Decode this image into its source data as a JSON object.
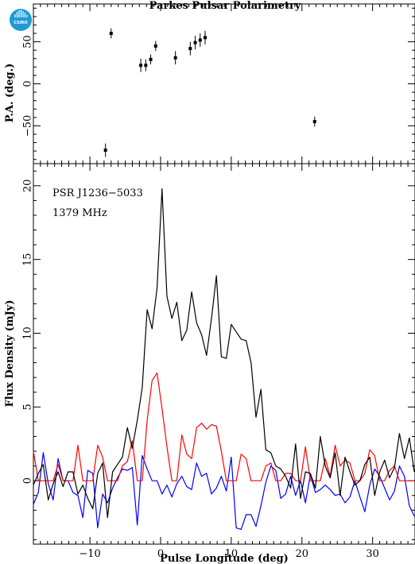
{
  "title": "Parkes Pulsar Polarimetry",
  "logo": {
    "text": "CSIRO",
    "color": "#1e9ad6"
  },
  "colors": {
    "total": "#000000",
    "linear": "#ff0000",
    "circular": "#0000ff",
    "pa": "#000000"
  },
  "chart_data": [
    {
      "type": "scatter",
      "panel": "position-angle",
      "ylabel": "P.A. (deg.)",
      "xlim": [
        -18,
        36
      ],
      "ylim": [
        -95,
        95
      ],
      "yticks": [
        -50,
        0,
        50
      ],
      "x": [
        -7.8,
        -7.0,
        -2.8,
        -2.1,
        -1.4,
        -0.7,
        2.1,
        4.2,
        4.9,
        5.6,
        6.3,
        21.8
      ],
      "y": [
        -79,
        60,
        22,
        22,
        29,
        45,
        31,
        42,
        49,
        52,
        55,
        -45
      ],
      "yerr": [
        8,
        6,
        8,
        7,
        6,
        6,
        8,
        8,
        8,
        8,
        8,
        6
      ]
    },
    {
      "type": "line",
      "panel": "profile",
      "xlabel": "Pulse Longitude (deg)",
      "ylabel": "Flux Density (mJy)",
      "xlim": [
        -18,
        36
      ],
      "ylim": [
        -4.3,
        21.5
      ],
      "xticks": [
        -10,
        0,
        10,
        20,
        30
      ],
      "yticks": [
        0,
        5,
        10,
        15,
        20
      ],
      "annotations": [
        "PSR J1236−5033",
        "1379 MHz"
      ],
      "x": [
        -18.0,
        -17.3,
        -16.6,
        -15.9,
        -15.2,
        -14.5,
        -13.8,
        -13.1,
        -12.4,
        -11.7,
        -11.0,
        -10.3,
        -9.6,
        -8.9,
        -8.2,
        -7.5,
        -6.8,
        -6.1,
        -5.4,
        -4.7,
        -4.0,
        -3.3,
        -2.6,
        -1.9,
        -1.2,
        -0.5,
        0.2,
        0.9,
        1.6,
        2.3,
        3.0,
        3.7,
        4.4,
        5.1,
        5.8,
        6.5,
        7.2,
        7.9,
        8.6,
        9.3,
        10.0,
        10.7,
        11.4,
        12.1,
        12.8,
        13.5,
        14.2,
        14.9,
        15.6,
        16.3,
        17.0,
        17.7,
        18.4,
        19.1,
        19.8,
        20.5,
        21.2,
        21.9,
        22.6,
        23.3,
        24.0,
        24.7,
        25.4,
        26.1,
        26.8,
        27.5,
        28.2,
        28.9,
        29.6,
        30.3,
        31.0,
        31.7,
        32.4,
        33.1,
        33.8,
        34.5,
        35.2,
        35.9
      ],
      "series": [
        {
          "values": [
            -0.3,
            0.5,
            1.1,
            -1.3,
            -0.2,
            0.6,
            -0.4,
            0.6,
            0.6,
            -0.9,
            -0.3,
            -1.2,
            -1.9,
            0.5,
            1.2,
            -2.5,
            0.6,
            1.1,
            1.6,
            3.6,
            2.2,
            4.1,
            6.3,
            11.6,
            10.3,
            13.1,
            19.8,
            12.5,
            11.0,
            12.1,
            9.5,
            10.2,
            12.8,
            10.7,
            9.9,
            8.5,
            11.0,
            13.9,
            8.4,
            8.3,
            10.6,
            10.1,
            9.6,
            9.5,
            8.0,
            4.3,
            6.2,
            2.1,
            1.9,
            1.0,
            0.8,
            0.3,
            -0.5,
            2.5,
            -1.2,
            0.6,
            0.5,
            -0.5,
            3.0,
            1.0,
            0.2,
            1.9,
            -1.0,
            1.6,
            0.6,
            -0.3,
            0.0,
            1.1,
            1.6,
            -1.0,
            0.6,
            1.4,
            0.2,
            0.9,
            3.2,
            1.5,
            2.9,
            0.6
          ]
        },
        {
          "values": [
            2.0,
            0.0,
            0.0,
            0.0,
            0.0,
            1.1,
            0.0,
            0.0,
            0.0,
            2.4,
            0.0,
            0.0,
            0.0,
            2.4,
            1.6,
            0.0,
            0.0,
            0.0,
            1.0,
            1.3,
            2.7,
            0.0,
            0.0,
            4.1,
            6.8,
            7.3,
            4.9,
            2.3,
            0.0,
            0.0,
            3.1,
            1.8,
            1.5,
            3.6,
            3.9,
            3.5,
            3.8,
            3.7,
            2.0,
            0.0,
            0.0,
            0.0,
            1.8,
            1.5,
            0.0,
            0.0,
            0.0,
            1.0,
            1.2,
            0.0,
            0.0,
            0.5,
            0.5,
            0.0,
            0.0,
            2.3,
            0.0,
            0.0,
            0.0,
            1.5,
            0.3,
            2.4,
            1.0,
            1.4,
            1.2,
            0.0,
            0.0,
            0.5,
            2.1,
            1.7,
            0.0,
            0.0,
            0.7,
            1.0,
            0.0,
            0.0,
            0.0,
            0.0
          ]
        },
        {
          "values": [
            -1.6,
            -0.8,
            1.9,
            -0.2,
            -1.3,
            1.5,
            0.0,
            0.0,
            -0.8,
            -1.0,
            -2.5,
            0.7,
            0.5,
            -3.2,
            -0.9,
            -1.5,
            -0.5,
            0.2,
            0.8,
            0.7,
            0.9,
            -3.0,
            1.7,
            0.8,
            0.0,
            0.0,
            -0.9,
            -0.3,
            -1.1,
            -0.2,
            0.3,
            -0.4,
            -0.6,
            1.2,
            0.3,
            0.5,
            -0.9,
            -0.5,
            0.3,
            -0.7,
            1.6,
            -3.2,
            -3.3,
            -2.3,
            -2.3,
            -3.1,
            -1.7,
            -0.1,
            1.0,
            0.7,
            -1.2,
            -0.9,
            0.3,
            -1.0,
            0.0,
            -1.5,
            0.4,
            -0.8,
            -0.6,
            -0.3,
            -0.6,
            -1.0,
            -0.9,
            -1.5,
            -1.1,
            0.0,
            -1.1,
            -2.1,
            -0.3,
            0.8,
            0.3,
            -0.5,
            -1.3,
            -0.7,
            1.0,
            0.3,
            -1.7,
            -2.4
          ]
        }
      ]
    }
  ]
}
